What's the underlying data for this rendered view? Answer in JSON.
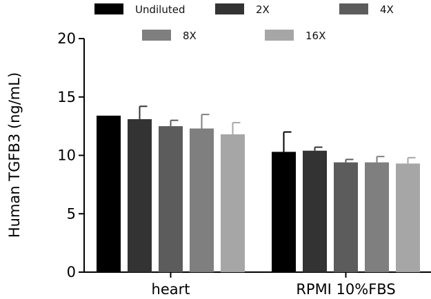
{
  "chart_data": {
    "type": "bar",
    "categories": [
      "heart",
      "RPMI 10%FBS"
    ],
    "series": [
      {
        "name": "Undiluted",
        "color": "#000000",
        "values": [
          13.4,
          10.3
        ],
        "errors": [
          0.0,
          1.7
        ]
      },
      {
        "name": "2X",
        "color": "#333333",
        "values": [
          13.1,
          10.4
        ],
        "errors": [
          1.1,
          0.3
        ]
      },
      {
        "name": "4X",
        "color": "#5c5c5c",
        "values": [
          12.5,
          9.4
        ],
        "errors": [
          0.5,
          0.25
        ]
      },
      {
        "name": "8X",
        "color": "#7f7f7f",
        "values": [
          12.3,
          9.4
        ],
        "errors": [
          1.2,
          0.5
        ]
      },
      {
        "name": "16X",
        "color": "#a6a6a6",
        "values": [
          11.8,
          9.3
        ],
        "errors": [
          1.0,
          0.5
        ]
      }
    ],
    "title": "",
    "xlabel": "",
    "ylabel": "Human TGFB3 (ng/mL)",
    "ylim": [
      0,
      20
    ],
    "yticks": [
      "0",
      "5",
      "10",
      "15",
      "20"
    ],
    "grid": false,
    "legend_position": "top"
  }
}
